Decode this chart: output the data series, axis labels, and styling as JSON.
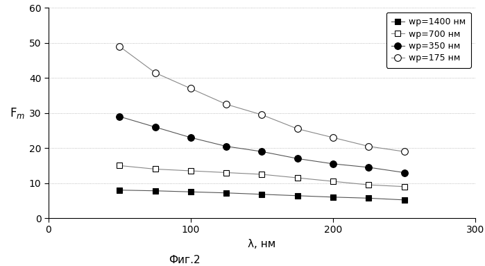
{
  "title": "",
  "xlabel": "λ, нм",
  "ylabel": "F_m",
  "caption": "Фиг.2",
  "xlim": [
    0,
    300
  ],
  "ylim": [
    0,
    60
  ],
  "xticks": [
    0,
    100,
    200,
    300
  ],
  "yticks": [
    0,
    10,
    20,
    30,
    40,
    50,
    60
  ],
  "series": [
    {
      "label": "wp=1400 нм",
      "x": [
        50,
        75,
        100,
        125,
        150,
        175,
        200,
        225,
        250
      ],
      "y": [
        8.0,
        7.8,
        7.5,
        7.2,
        6.8,
        6.4,
        6.0,
        5.7,
        5.2
      ],
      "marker": "s",
      "fillstyle": "full",
      "color": "#555555",
      "markerfacecolor": "black",
      "markersize": 6
    },
    {
      "label": "wp=700 нм",
      "x": [
        50,
        75,
        100,
        125,
        150,
        175,
        200,
        225,
        250
      ],
      "y": [
        15.0,
        14.0,
        13.5,
        13.0,
        12.5,
        11.5,
        10.5,
        9.5,
        9.0
      ],
      "marker": "s",
      "fillstyle": "none",
      "color": "#888888",
      "markerfacecolor": "white",
      "markersize": 6
    },
    {
      "label": "wp=350 нм",
      "x": [
        50,
        75,
        100,
        125,
        150,
        175,
        200,
        225,
        250
      ],
      "y": [
        29.0,
        26.0,
        23.0,
        20.5,
        19.0,
        17.0,
        15.5,
        14.5,
        13.0
      ],
      "marker": "o",
      "fillstyle": "full",
      "color": "#555555",
      "markerfacecolor": "black",
      "markersize": 7
    },
    {
      "label": "wp=175 нм",
      "x": [
        50,
        75,
        100,
        125,
        150,
        175,
        200,
        225,
        250
      ],
      "y": [
        49.0,
        41.5,
        37.0,
        32.5,
        29.5,
        25.5,
        23.0,
        20.5,
        19.0
      ],
      "marker": "o",
      "fillstyle": "none",
      "color": "#888888",
      "markerfacecolor": "white",
      "markersize": 7
    }
  ],
  "grid_color": "#aaaaaa",
  "background_color": "#ffffff",
  "legend_fontsize": 9,
  "tick_fontsize": 10,
  "axis_label_fontsize": 11,
  "caption_fontsize": 11,
  "linewidth": 0.8
}
